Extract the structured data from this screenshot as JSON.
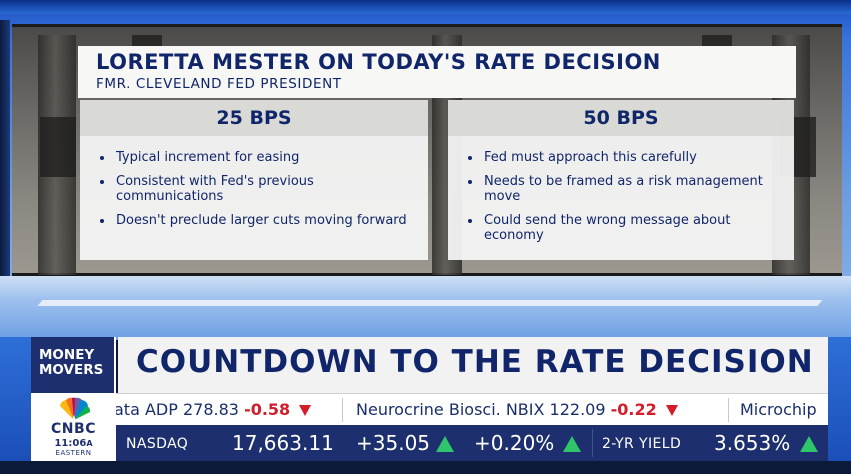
{
  "graphic": {
    "title": "LORETTA MESTER ON TODAY'S RATE DECISION",
    "subtitle": "FMR. CLEVELAND FED PRESIDENT",
    "left_column": {
      "heading": "25 BPS",
      "bullets": [
        "Typical increment for easing",
        "Consistent with Fed's previous communications",
        "Doesn't preclude larger cuts moving forward"
      ]
    },
    "right_column": {
      "heading": "50 BPS",
      "bullets": [
        "Fed must approach this carefully",
        "Needs to be framed as a risk management move",
        "Could send the wrong message about economy"
      ]
    }
  },
  "lower_third": {
    "show_name": "MONEY MOVERS",
    "headline": "COUNTDOWN TO THE RATE DECISION",
    "network": "CNBC",
    "time": "11:06",
    "meridiem": "A",
    "timezone": "EASTERN"
  },
  "ticker": [
    {
      "name": "ata ADP",
      "price": "278.83",
      "change": "-0.58",
      "direction": "down"
    },
    {
      "name": "Neurocrine Biosci. NBIX",
      "price": "122.09",
      "change": "-0.22",
      "direction": "down"
    },
    {
      "name": "Microchip",
      "price": "",
      "change": "",
      "direction": ""
    }
  ],
  "market_bar": {
    "index_name": "NASDAQ",
    "index_value": "17,663.11",
    "index_change": "+35.05",
    "index_change_pct": "+0.20%",
    "yield_name": "2-YR YIELD",
    "yield_value": "3.653%"
  },
  "colors": {
    "navy": "#11266a",
    "ticker_navy": "#1d2f6e",
    "down_red": "#d21d2a",
    "up_green": "#2fc66b"
  },
  "icons": {
    "network_logo": "peacock-icon",
    "down_marker": "triangle-down-icon",
    "up_marker": "triangle-up-icon"
  }
}
